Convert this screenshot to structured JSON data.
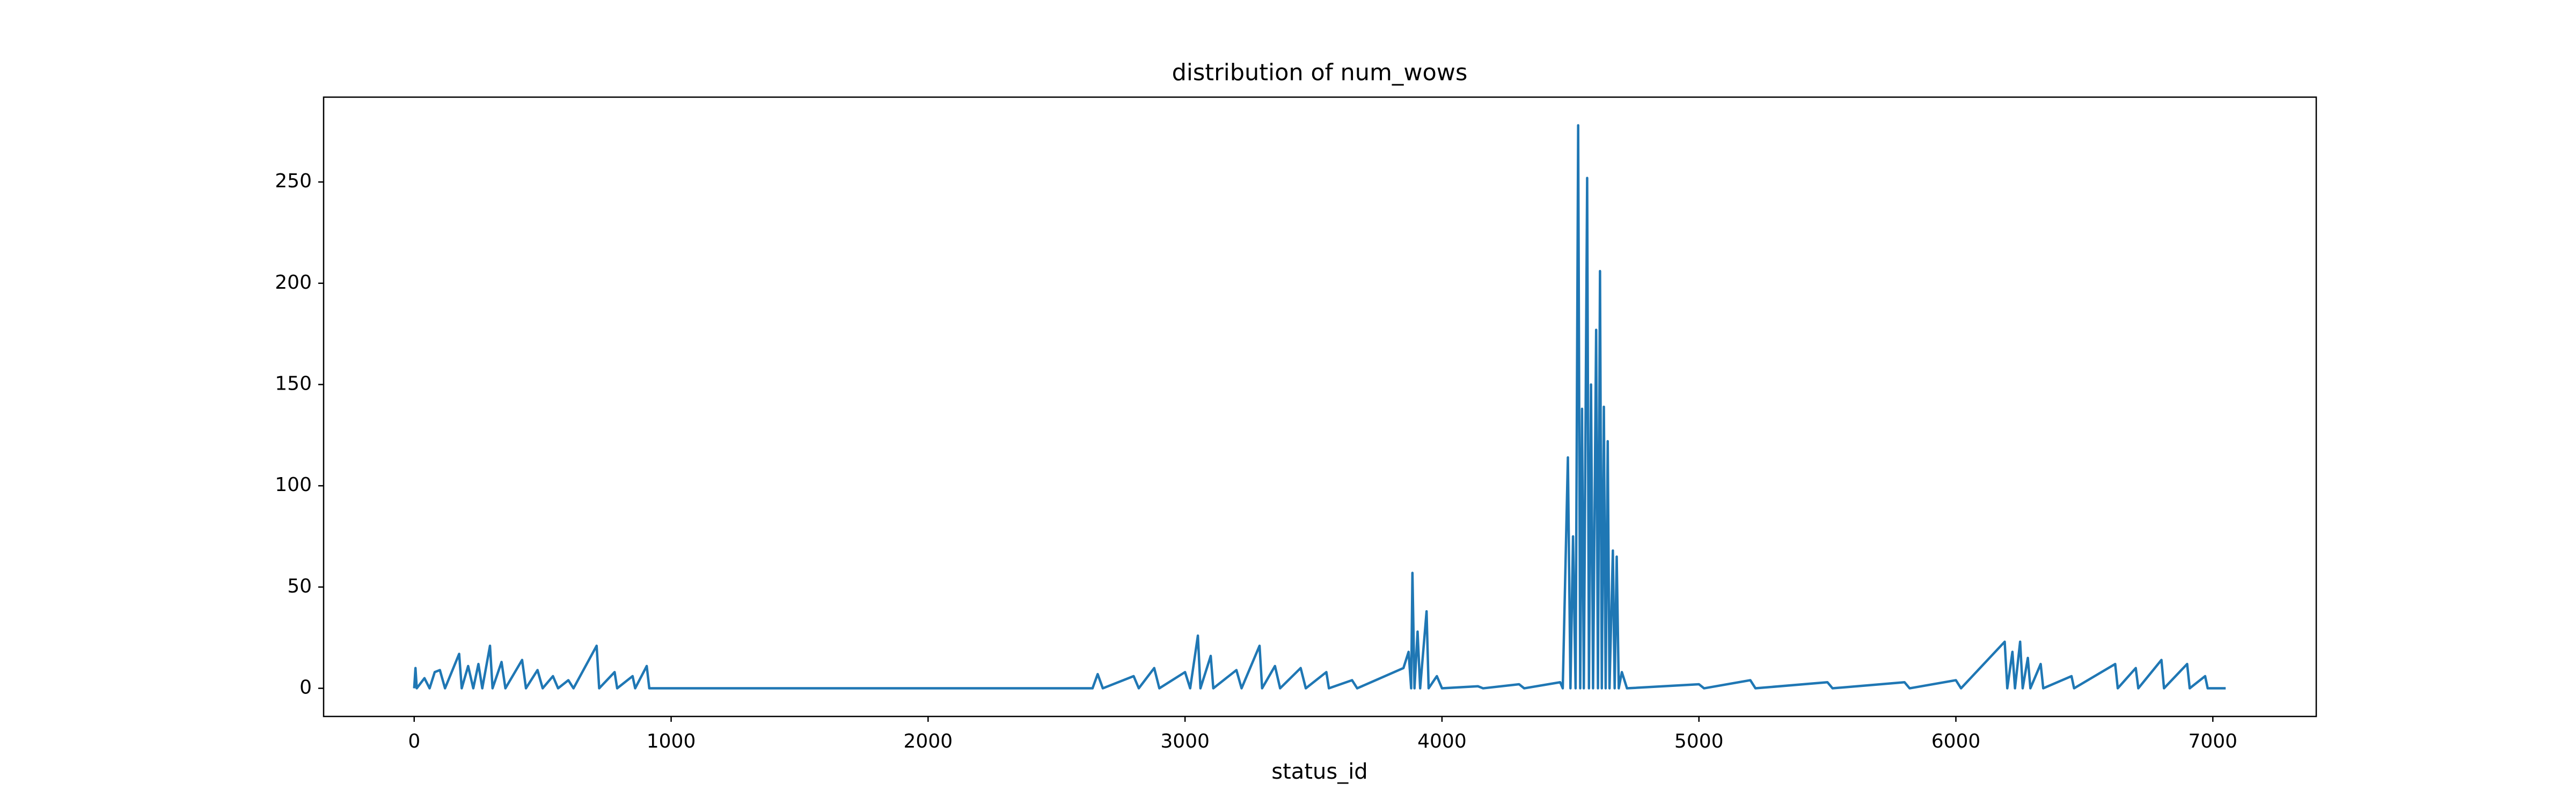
{
  "chart_data": {
    "type": "line",
    "title": "distribution of num_wows",
    "x_label": "status_id",
    "color": "#1f77b4",
    "grid": false,
    "xlim": [
      -352.5,
      7402.5
    ],
    "xticks": [
      0,
      1000,
      2000,
      3000,
      4000,
      5000,
      6000,
      7000
    ],
    "ylim": [
      -13.9,
      291.9
    ],
    "yticks": [
      0,
      50,
      100,
      150,
      200,
      250
    ],
    "x": [
      0,
      5,
      10,
      40,
      60,
      80,
      100,
      120,
      175,
      185,
      210,
      230,
      250,
      265,
      295,
      305,
      340,
      355,
      420,
      435,
      480,
      500,
      540,
      560,
      600,
      620,
      710,
      720,
      780,
      790,
      850,
      860,
      905,
      915,
      2640,
      2660,
      2680,
      2800,
      2820,
      2880,
      2900,
      3000,
      3020,
      3050,
      3060,
      3100,
      3110,
      3200,
      3220,
      3290,
      3300,
      3350,
      3370,
      3450,
      3470,
      3550,
      3560,
      3650,
      3670,
      3850,
      3870,
      3880,
      3885,
      3893,
      3905,
      3915,
      3940,
      3948,
      3980,
      4000,
      4140,
      4160,
      4300,
      4320,
      4460,
      4470,
      4490,
      4500,
      4510,
      4520,
      4530,
      4538,
      4545,
      4552,
      4565,
      4572,
      4580,
      4588,
      4600,
      4607,
      4615,
      4622,
      4630,
      4637,
      4645,
      4652,
      4665,
      4672,
      4680,
      4688,
      4700,
      4720,
      5000,
      5020,
      5200,
      5220,
      5500,
      5520,
      5800,
      5820,
      6000,
      6020,
      6190,
      6200,
      6220,
      6230,
      6250,
      6260,
      6280,
      6290,
      6330,
      6340,
      6450,
      6460,
      6620,
      6630,
      6700,
      6710,
      6800,
      6810,
      6900,
      6910,
      6970,
      6980,
      7050
    ],
    "values": [
      0,
      10,
      0,
      5,
      0,
      8,
      9,
      0,
      17,
      0,
      11,
      0,
      12,
      0,
      21,
      0,
      13,
      0,
      14,
      0,
      9,
      0,
      6,
      0,
      4,
      0,
      21,
      0,
      8,
      0,
      6,
      0,
      11,
      0,
      0,
      7,
      0,
      6,
      0,
      10,
      0,
      8,
      0,
      26,
      0,
      16,
      0,
      9,
      0,
      21,
      0,
      11,
      0,
      10,
      0,
      8,
      0,
      4,
      0,
      10,
      18,
      0,
      57,
      0,
      28,
      0,
      38,
      0,
      6,
      0,
      1,
      0,
      2,
      0,
      3,
      0,
      114,
      0,
      75,
      0,
      278,
      0,
      138,
      0,
      252,
      0,
      150,
      0,
      177,
      0,
      206,
      0,
      139,
      0,
      122,
      0,
      68,
      0,
      65,
      0,
      8,
      0,
      2,
      0,
      4,
      0,
      3,
      0,
      3,
      0,
      4,
      0,
      23,
      0,
      18,
      0,
      23,
      0,
      15,
      0,
      12,
      0,
      6,
      0,
      12,
      0,
      10,
      0,
      14,
      0,
      12,
      0,
      6,
      0,
      0
    ]
  }
}
